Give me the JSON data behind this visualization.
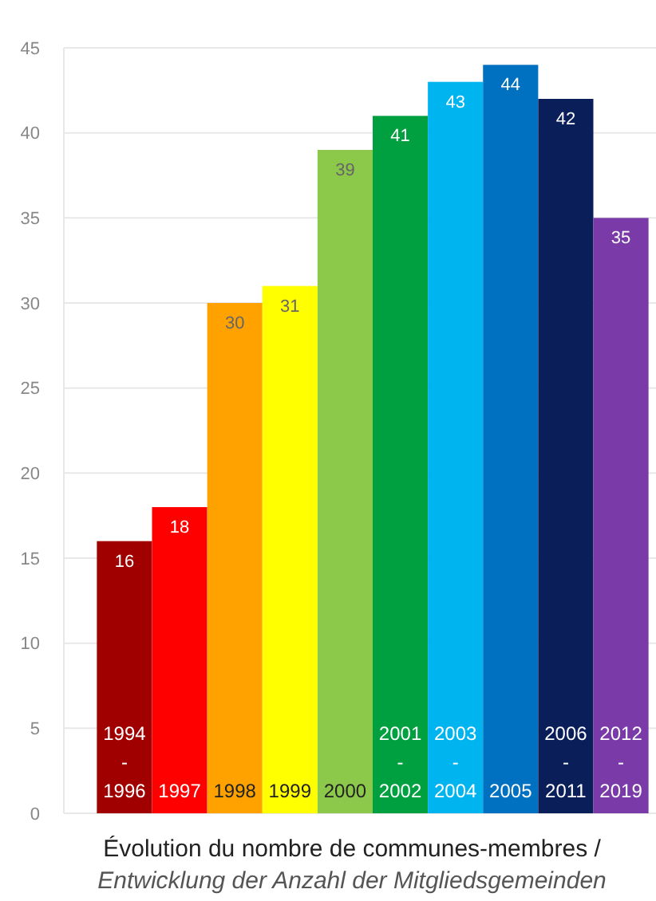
{
  "chart_data": {
    "type": "bar",
    "title": "Évolution du nombre de communes-membres /",
    "subtitle": "Entwicklung der Anzahl der Mitgliedsgemeinden",
    "categories": [
      "1994\n-\n1996",
      "1997",
      "1998",
      "1999",
      "2000",
      "2001\n-\n2002",
      "2003\n-\n2004",
      "2005",
      "2006\n-\n2011",
      "2012\n-\n2019"
    ],
    "values": [
      16,
      18,
      30,
      31,
      39,
      41,
      43,
      44,
      42,
      35
    ],
    "colors": [
      "#a00000",
      "#ff0000",
      "#ffa200",
      "#ffff00",
      "#8cc84a",
      "#00a040",
      "#00b4f0",
      "#0070c0",
      "#0a1e5a",
      "#7a3aa8"
    ],
    "ylim": [
      0,
      45
    ],
    "yticks": [
      0,
      5,
      10,
      15,
      20,
      25,
      30,
      35,
      40,
      45
    ],
    "grid": "y",
    "data_labels": true
  }
}
